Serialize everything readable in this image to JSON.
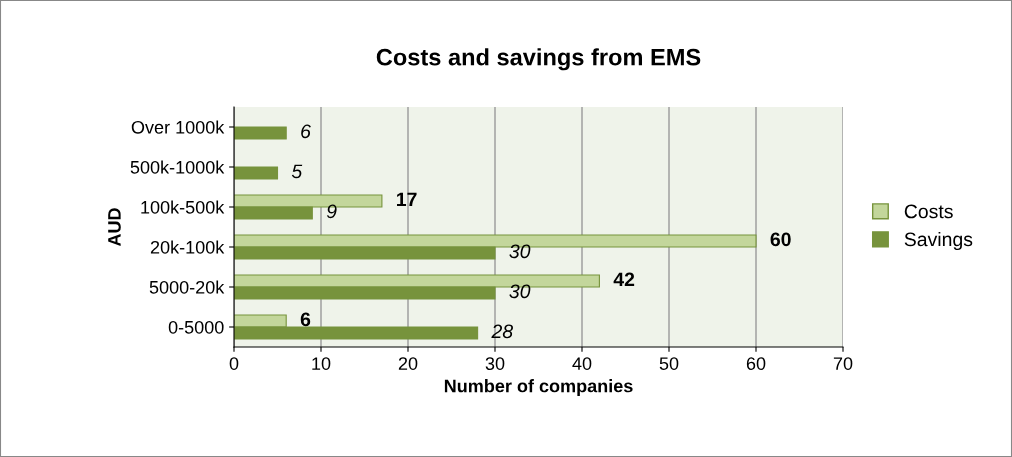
{
  "chart_data": {
    "type": "bar",
    "orientation": "horizontal",
    "title": "Costs and savings from EMS",
    "xlabel": "Number of companies",
    "ylabel": "AUD",
    "categories": [
      "Over 1000k",
      "500k-1000k",
      "100k-500k",
      "20k-100k",
      "5000-20k",
      "0-5000"
    ],
    "series": [
      {
        "name": "Costs",
        "color": "#c3d69b",
        "values": [
          null,
          null,
          17,
          60,
          42,
          6
        ]
      },
      {
        "name": "Savings",
        "color": "#77933c",
        "values": [
          6,
          5,
          9,
          30,
          30,
          28
        ]
      }
    ],
    "xlim": [
      0,
      70
    ],
    "xticks": [
      0,
      10,
      20,
      30,
      40,
      50,
      60,
      70
    ],
    "grid": "x",
    "legend": "right",
    "data_labels": true
  }
}
